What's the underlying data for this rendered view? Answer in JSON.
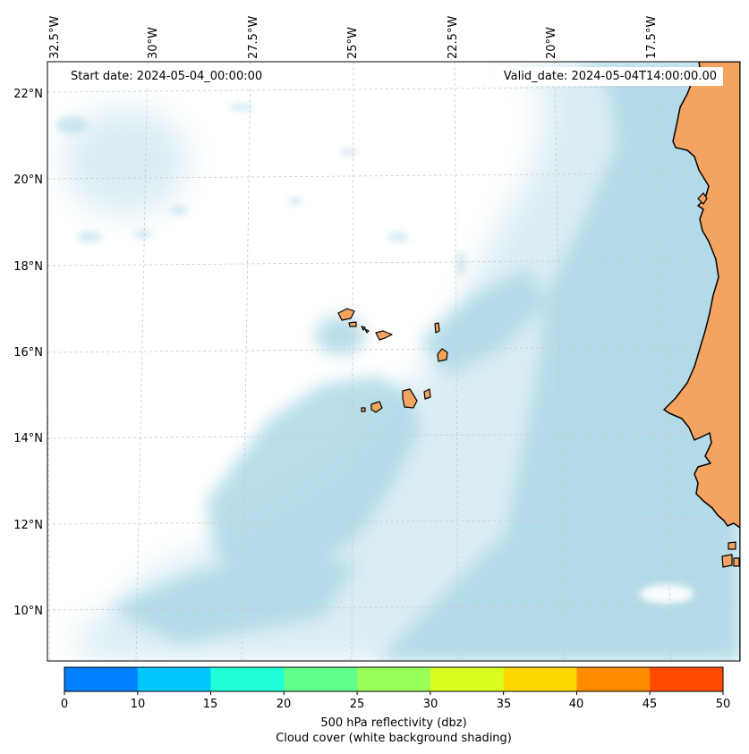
{
  "map": {
    "info": {
      "start_date": "Start date: 2024-05-04_00:00:00",
      "valid_date": "Valid_date: 2024-05-04T14:00:00.00"
    },
    "longitude_labels": [
      "32.5°W",
      "30°W",
      "27.5°W",
      "25°W",
      "22.5°W",
      "20°W",
      "17.5°W"
    ],
    "latitude_labels": [
      "22°N",
      "20°N",
      "18°N",
      "16°N",
      "14°N",
      "12°N",
      "10°N"
    ],
    "colors": {
      "land": "#f4a460",
      "cloud_cover": "#add8e6",
      "coastline": "#000000",
      "gridline": "#c8c8c8"
    },
    "features": [
      "Cabo Verde islands",
      "West African coast"
    ]
  },
  "colorbar": {
    "ticks": [
      "0",
      "10",
      "15",
      "20",
      "25",
      "30",
      "35",
      "40",
      "45",
      "50"
    ],
    "colors": [
      "#0080ff",
      "#00c8ff",
      "#20ffd8",
      "#60ff8c",
      "#98ff58",
      "#d8ff20",
      "#ffd700",
      "#ff8c00",
      "#ff4a00"
    ],
    "label_line1": "500 hPa reflectivity (dbz)",
    "label_line2": "Cloud cover (white background shading)"
  }
}
